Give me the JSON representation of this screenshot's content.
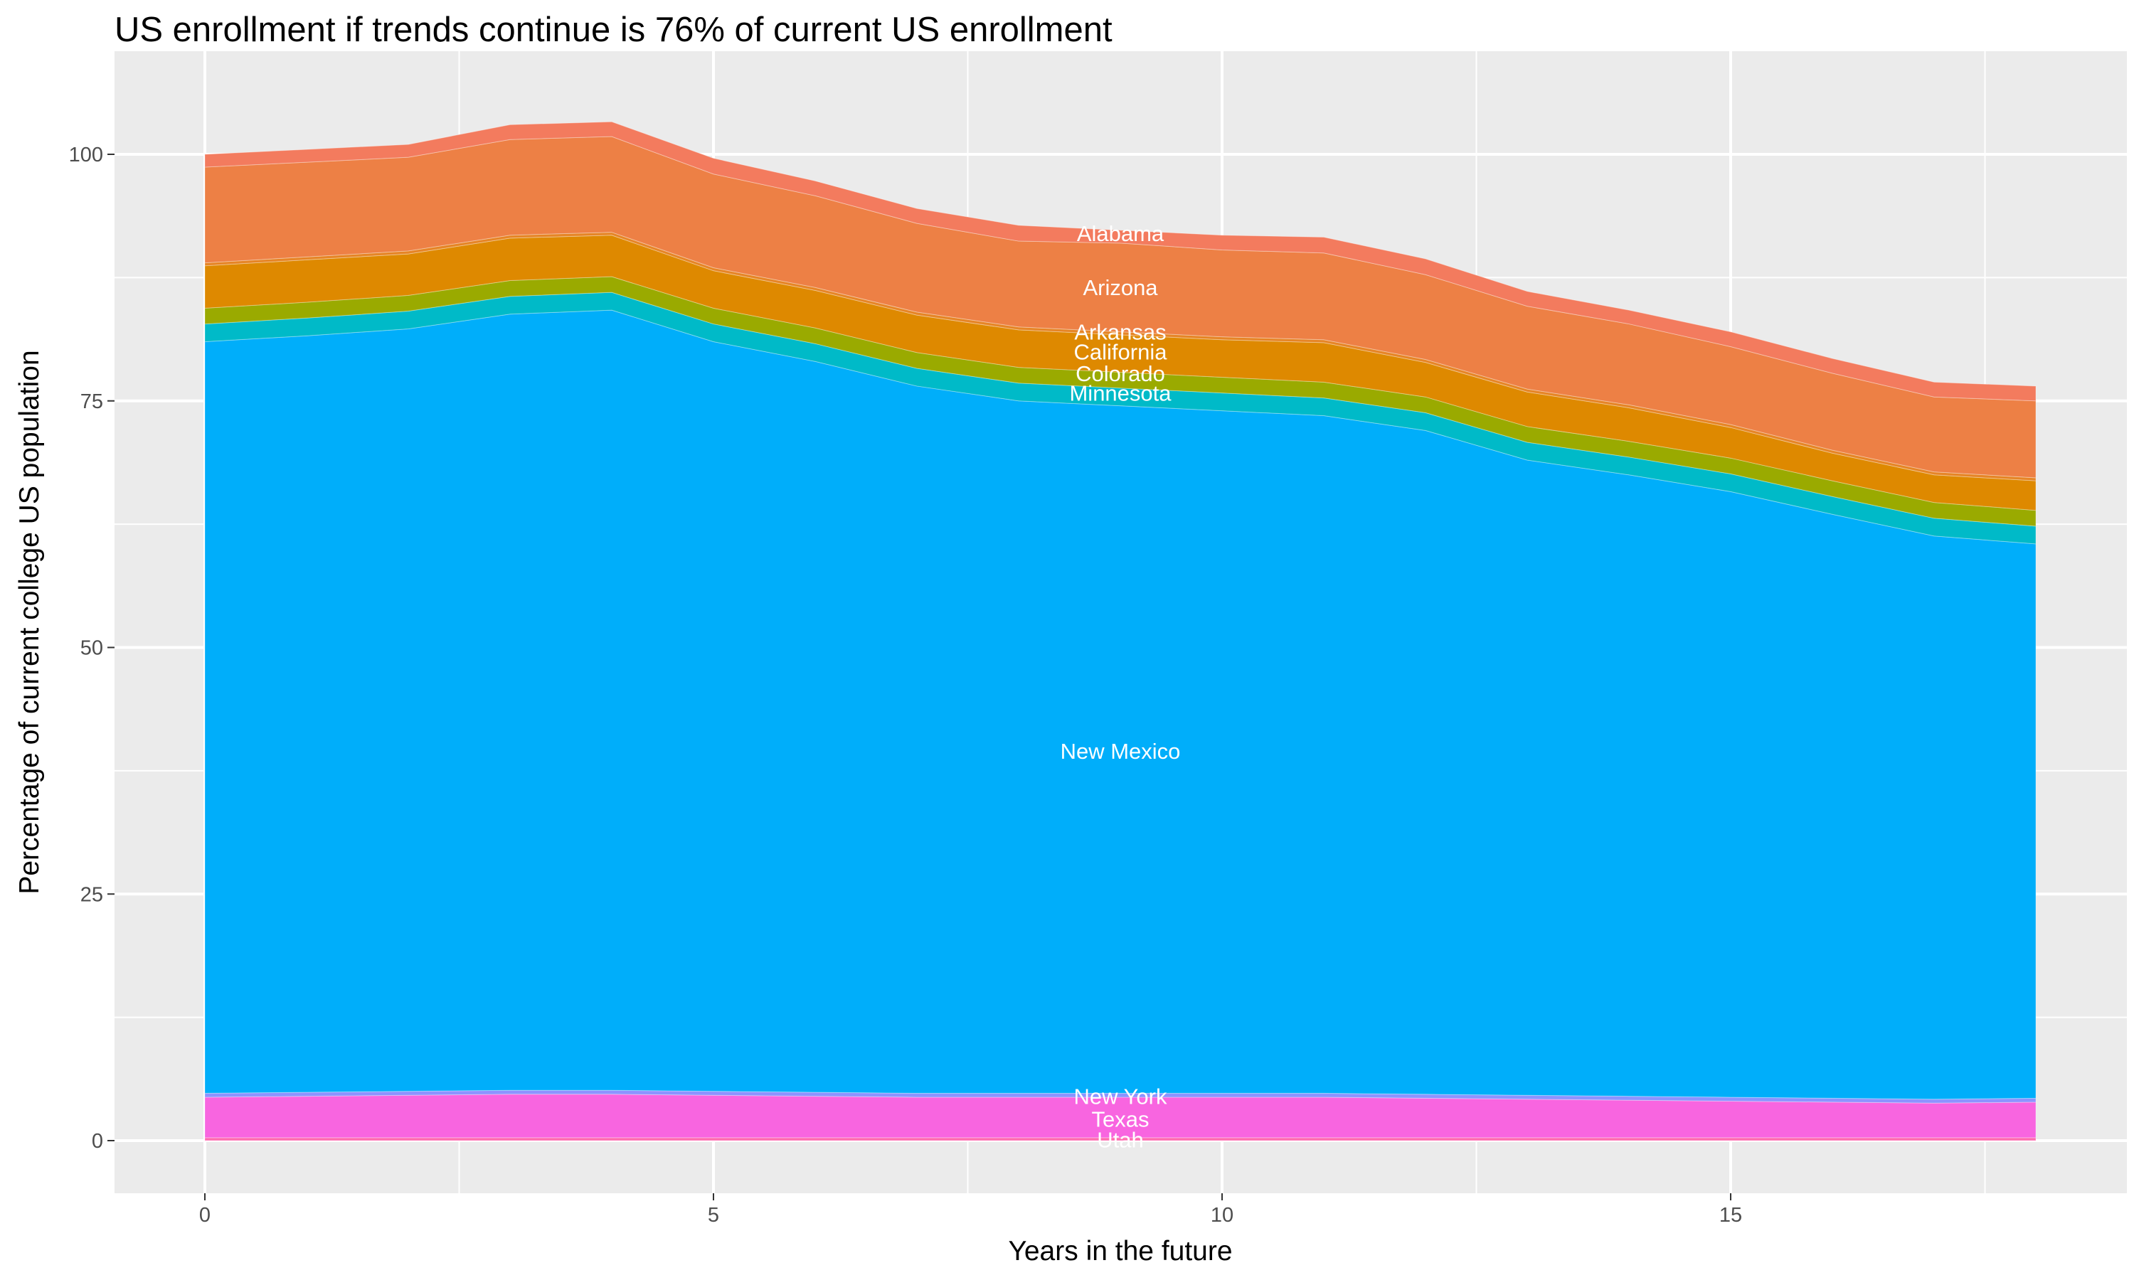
{
  "chart_data": {
    "type": "area",
    "stacked": true,
    "title": "US enrollment if trends continue is 76% of current US enrollment",
    "xlabel": "Years in the future",
    "ylabel": "Percentage of current college US population",
    "xlim": [
      0,
      18
    ],
    "ylim": [
      0,
      103.3
    ],
    "x_ticks": [
      0,
      5,
      10,
      15
    ],
    "y_ticks": [
      0,
      25,
      50,
      75,
      100
    ],
    "grid": true,
    "legend": "none",
    "x": [
      0,
      1,
      2,
      3,
      4,
      5,
      6,
      7,
      8,
      9,
      10,
      11,
      12,
      13,
      14,
      15,
      16,
      17,
      18
    ],
    "series": [
      {
        "name": "Alabama",
        "color": "#F37B5E",
        "label_y": 92,
        "values": [
          1.3,
          1.3,
          1.3,
          1.5,
          1.5,
          1.6,
          1.5,
          1.5,
          1.6,
          1.3,
          1.5,
          1.6,
          1.6,
          1.5,
          1.4,
          1.5,
          1.5,
          1.5,
          1.5
        ]
      },
      {
        "name": "Arizona",
        "color": "#ED8045",
        "label_y": 86.5,
        "values": [
          9.7,
          9.6,
          9.5,
          9.7,
          9.7,
          9.5,
          9.3,
          9.0,
          8.7,
          9.0,
          8.8,
          8.8,
          8.6,
          8.4,
          8.2,
          7.9,
          7.8,
          7.6,
          7.8
        ]
      },
      {
        "name": "Arkansas",
        "color": "#E68526",
        "label_y": 82,
        "values": [
          0.3,
          0.3,
          0.3,
          0.3,
          0.3,
          0.3,
          0.3,
          0.3,
          0.3,
          0.3,
          0.3,
          0.3,
          0.3,
          0.3,
          0.3,
          0.3,
          0.3,
          0.3,
          0.3
        ]
      },
      {
        "name": "California",
        "color": "#DE8900",
        "label_y": 80,
        "values": [
          4.3,
          4.3,
          4.2,
          4.3,
          4.2,
          3.8,
          3.8,
          3.8,
          3.8,
          3.8,
          3.8,
          4.0,
          3.5,
          3.5,
          3.4,
          3.1,
          2.8,
          2.8,
          3.0
        ]
      },
      {
        "name": "Colorado",
        "color": "#9AAA00",
        "label_y": 77.8,
        "values": [
          1.6,
          1.6,
          1.6,
          1.6,
          1.6,
          1.6,
          1.6,
          1.6,
          1.6,
          1.6,
          1.6,
          1.6,
          1.6,
          1.6,
          1.6,
          1.6,
          1.6,
          1.6,
          1.6
        ]
      },
      {
        "name": "Minnesota",
        "color": "#00BAC8",
        "label_y": 75.8,
        "values": [
          1.8,
          1.8,
          1.8,
          1.8,
          1.8,
          1.8,
          1.8,
          1.8,
          1.8,
          1.8,
          1.8,
          1.8,
          1.8,
          1.8,
          1.8,
          1.8,
          1.8,
          1.8,
          1.8
        ]
      },
      {
        "name": "New Mexico",
        "color": "#00AEFA",
        "label_y": 39.5,
        "values": [
          76.2,
          76.7,
          77.3,
          78.7,
          79.1,
          76.0,
          74.1,
          71.7,
          70.2,
          69.7,
          69.2,
          68.7,
          67.3,
          64.4,
          63.0,
          61.4,
          59.2,
          57.1,
          56.2
        ]
      },
      {
        "name": "New York",
        "color": "#8D93FF",
        "label_y": 4.5,
        "values": [
          0.4,
          0.4,
          0.4,
          0.4,
          0.4,
          0.4,
          0.4,
          0.4,
          0.4,
          0.4,
          0.4,
          0.4,
          0.4,
          0.4,
          0.4,
          0.4,
          0.4,
          0.4,
          0.4
        ]
      },
      {
        "name": "Texas",
        "color": "#F865E0",
        "label_y": 2.2,
        "values": [
          4.1,
          4.2,
          4.3,
          4.4,
          4.4,
          4.3,
          4.2,
          4.1,
          4.1,
          4.1,
          4.1,
          4.1,
          4.0,
          3.9,
          3.8,
          3.7,
          3.6,
          3.5,
          3.6
        ]
      },
      {
        "name": "Utah",
        "color": "#FF6BB0",
        "label_y": 0.1,
        "values": [
          0.3,
          0.3,
          0.3,
          0.3,
          0.3,
          0.3,
          0.3,
          0.3,
          0.3,
          0.3,
          0.3,
          0.3,
          0.3,
          0.3,
          0.3,
          0.3,
          0.3,
          0.3,
          0.3
        ]
      }
    ],
    "label_x": 9
  }
}
